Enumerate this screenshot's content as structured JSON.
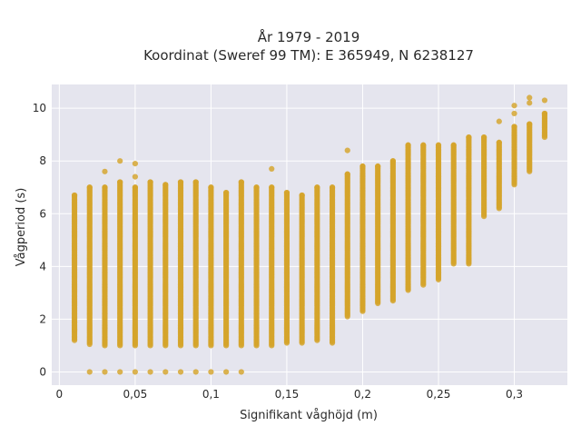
{
  "chart_data": {
    "type": "scatter",
    "title_lines": [
      "År 1979 - 2019",
      "Koordinat (Sweref 99 TM): E 365949, N 6238127"
    ],
    "xlabel": "Signifikant våghöjd (m)",
    "ylabel": "Vågperiod (s)",
    "xlim": [
      -0.005,
      0.335
    ],
    "ylim": [
      -0.5,
      10.9
    ],
    "x_ticks": [
      {
        "value": 0,
        "label": "0"
      },
      {
        "value": 0.05,
        "label": "0,05"
      },
      {
        "value": 0.1,
        "label": "0,1"
      },
      {
        "value": 0.15,
        "label": "0,15"
      },
      {
        "value": 0.2,
        "label": "0,2"
      },
      {
        "value": 0.25,
        "label": "0,25"
      },
      {
        "value": 0.3,
        "label": "0,3"
      }
    ],
    "y_ticks": [
      {
        "value": 0,
        "label": "0"
      },
      {
        "value": 2,
        "label": "2"
      },
      {
        "value": 4,
        "label": "4"
      },
      {
        "value": 6,
        "label": "6"
      },
      {
        "value": 8,
        "label": "8"
      },
      {
        "value": 10,
        "label": "10"
      }
    ],
    "grid": true,
    "marker_color": "#D4A32B",
    "columns": [
      {
        "x": 0.01,
        "lo": 1.2,
        "hi": 6.7,
        "extra": [
          1.6,
          1.9
        ]
      },
      {
        "x": 0.02,
        "lo": 1.05,
        "hi": 7.0,
        "extra": [
          0
        ]
      },
      {
        "x": 0.03,
        "lo": 1.0,
        "hi": 7.0,
        "extra": [
          0,
          7.6
        ]
      },
      {
        "x": 0.04,
        "lo": 1.0,
        "hi": 7.2,
        "extra": [
          0,
          8.0
        ]
      },
      {
        "x": 0.05,
        "lo": 1.0,
        "hi": 7.0,
        "extra": [
          0,
          7.4,
          7.9
        ]
      },
      {
        "x": 0.06,
        "lo": 1.0,
        "hi": 7.2,
        "extra": [
          0
        ]
      },
      {
        "x": 0.07,
        "lo": 1.0,
        "hi": 7.1,
        "extra": [
          0
        ]
      },
      {
        "x": 0.08,
        "lo": 1.0,
        "hi": 7.2,
        "extra": [
          0
        ]
      },
      {
        "x": 0.09,
        "lo": 1.0,
        "hi": 7.2,
        "extra": [
          0
        ]
      },
      {
        "x": 0.1,
        "lo": 1.0,
        "hi": 7.0,
        "extra": [
          0
        ]
      },
      {
        "x": 0.11,
        "lo": 1.0,
        "hi": 6.8,
        "extra": [
          0
        ]
      },
      {
        "x": 0.12,
        "lo": 1.0,
        "hi": 7.2,
        "extra": [
          0
        ]
      },
      {
        "x": 0.13,
        "lo": 1.0,
        "hi": 7.0,
        "extra": []
      },
      {
        "x": 0.14,
        "lo": 1.0,
        "hi": 7.0,
        "extra": [
          7.7
        ]
      },
      {
        "x": 0.15,
        "lo": 1.1,
        "hi": 6.8,
        "extra": []
      },
      {
        "x": 0.16,
        "lo": 1.1,
        "hi": 6.7,
        "extra": []
      },
      {
        "x": 0.17,
        "lo": 1.2,
        "hi": 7.0,
        "extra": []
      },
      {
        "x": 0.18,
        "lo": 1.1,
        "hi": 7.0,
        "extra": []
      },
      {
        "x": 0.19,
        "lo": 2.1,
        "hi": 7.5,
        "extra": [
          8.4
        ]
      },
      {
        "x": 0.2,
        "lo": 2.3,
        "hi": 7.8,
        "extra": []
      },
      {
        "x": 0.21,
        "lo": 2.6,
        "hi": 7.8,
        "extra": []
      },
      {
        "x": 0.22,
        "lo": 2.7,
        "hi": 8.0,
        "extra": []
      },
      {
        "x": 0.23,
        "lo": 3.1,
        "hi": 8.6,
        "extra": []
      },
      {
        "x": 0.24,
        "lo": 3.3,
        "hi": 8.6,
        "extra": []
      },
      {
        "x": 0.25,
        "lo": 3.5,
        "hi": 8.6,
        "extra": []
      },
      {
        "x": 0.26,
        "lo": 4.1,
        "hi": 8.6,
        "extra": []
      },
      {
        "x": 0.27,
        "lo": 4.1,
        "hi": 8.9,
        "extra": []
      },
      {
        "x": 0.28,
        "lo": 5.9,
        "hi": 8.9,
        "extra": []
      },
      {
        "x": 0.29,
        "lo": 6.2,
        "hi": 8.7,
        "extra": [
          9.5
        ]
      },
      {
        "x": 0.3,
        "lo": 7.1,
        "hi": 9.3,
        "extra": [
          9.8,
          10.1
        ]
      },
      {
        "x": 0.31,
        "lo": 7.6,
        "hi": 9.4,
        "extra": [
          10.2,
          10.4
        ]
      },
      {
        "x": 0.32,
        "lo": 8.9,
        "hi": 9.8,
        "extra": [
          10.3
        ]
      }
    ]
  }
}
